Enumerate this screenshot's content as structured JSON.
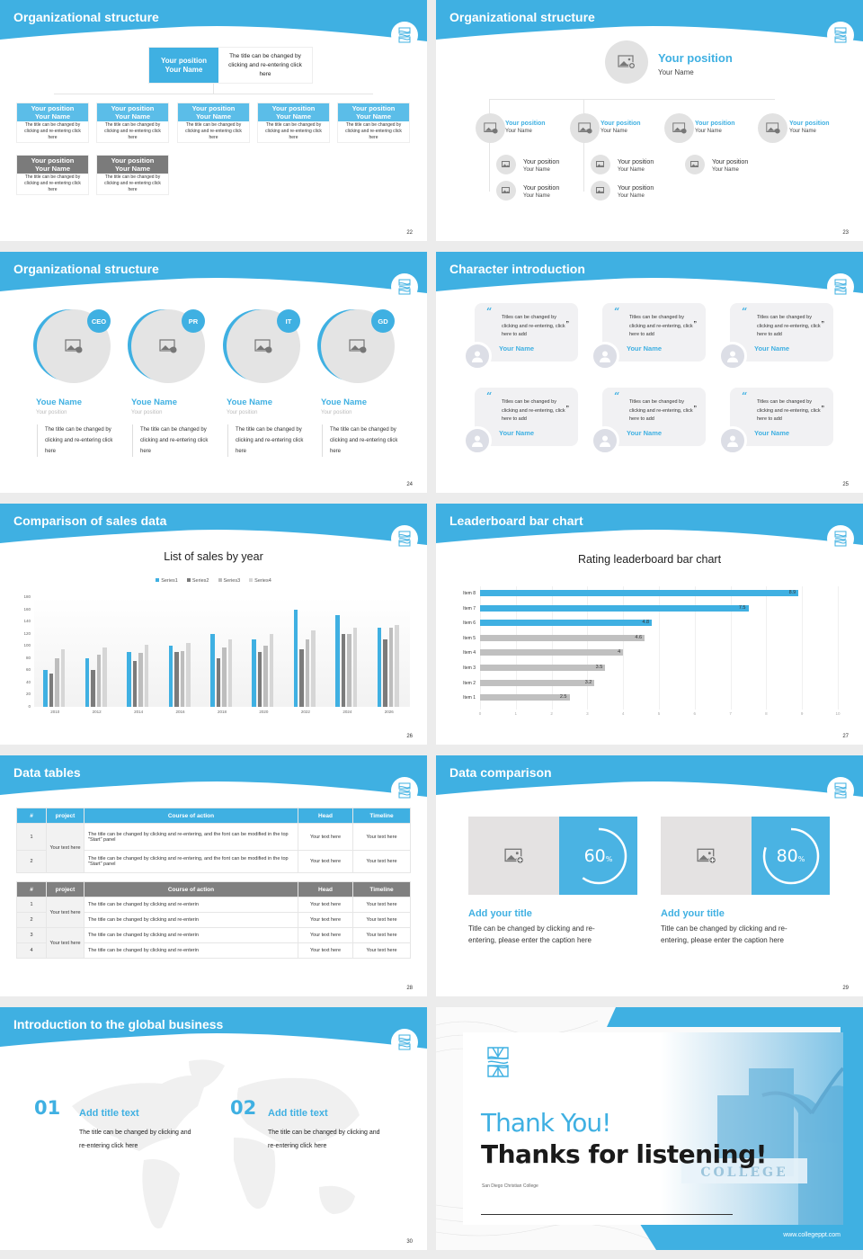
{
  "colors": {
    "accent": "#3fb0e2",
    "gray_dark": "#7b7b7b",
    "gray_mid": "#b0b0b0",
    "gray_light": "#d4d4d4",
    "page_bg": "#ececec"
  },
  "slides": {
    "s22": {
      "title": "Organizational structure",
      "page": "22",
      "top": {
        "position": "Your position",
        "name": "Your Name",
        "desc": "The title can be changed by clicking and re-entering click here"
      },
      "row1": [
        {
          "position": "Your position",
          "name": "Your Name",
          "desc": "The title can be changed by clicking and re-entering click here"
        },
        {
          "position": "Your position",
          "name": "Your Name",
          "desc": "The title can be changed by clicking and re-entering click here"
        },
        {
          "position": "Your position",
          "name": "Your Name",
          "desc": "The title can be changed by clicking and re-entering click here"
        },
        {
          "position": "Your position",
          "name": "Your Name",
          "desc": "The title can be changed by clicking and re-entering click here"
        },
        {
          "position": "Your position",
          "name": "Your Name",
          "desc": "The title can be changed by clicking and re-entering click here"
        }
      ],
      "row2": [
        {
          "position": "Your position",
          "name": "Your Name",
          "desc": "The title can be changed by clicking and re-entering click here"
        },
        {
          "position": "Your position",
          "name": "Your Name",
          "desc": "The title can be changed by clicking and re-entering click here"
        }
      ]
    },
    "s23": {
      "title": "Organizational structure",
      "page": "23",
      "top": {
        "position": "Your position",
        "name": "Your Name"
      },
      "level2": [
        {
          "position": "Your position",
          "name": "Your Name"
        },
        {
          "position": "Your position",
          "name": "Your Name"
        },
        {
          "position": "Your position",
          "name": "Your Name"
        },
        {
          "position": "Your position",
          "name": "Your Name"
        }
      ],
      "level3": [
        {
          "position": "Your position",
          "name": "Your Name"
        },
        {
          "position": "Your position",
          "name": "Your Name"
        },
        {
          "position": "Your position",
          "name": "Your Name"
        },
        {
          "position": "Your position",
          "name": "Your Name"
        },
        {
          "position": "Your position",
          "name": "Your Name"
        }
      ]
    },
    "s24": {
      "title": "Organizational structure",
      "page": "24",
      "people": [
        {
          "tag": "CEO",
          "name": "Youe Name",
          "position": "Your position",
          "desc": "The title can be changed by clicking and re-entering click here"
        },
        {
          "tag": "PR",
          "name": "Youe Name",
          "position": "Your position",
          "desc": "The title can be changed by clicking and re-entering click here"
        },
        {
          "tag": "IT",
          "name": "Youe Name",
          "position": "Your position",
          "desc": "The title can be changed by clicking and re-entering click here"
        },
        {
          "tag": "GD",
          "name": "Youe Name",
          "position": "Your position",
          "desc": "The title can be changed by clicking and re-entering click here"
        }
      ]
    },
    "s25": {
      "title": "Character introduction",
      "page": "25",
      "cards": [
        {
          "text": "Titles can be changed by clicking and re-entering, click here to add",
          "name": "Your Name"
        },
        {
          "text": "Titles can be changed by clicking and re-entering, click here to add",
          "name": "Your Name"
        },
        {
          "text": "Titles can be changed by clicking and re-entering, click here to add",
          "name": "Your Name"
        },
        {
          "text": "Titles can be changed by clicking and re-entering, click here to add",
          "name": "Your Name"
        },
        {
          "text": "Titles can be changed by clicking and re-entering, click here to add",
          "name": "Your Name"
        },
        {
          "text": "Titles can be changed by clicking and re-entering, click here to add",
          "name": "Your Name"
        }
      ],
      "quote_open": "“",
      "quote_close": "”"
    },
    "s26": {
      "title": "Comparison of sales data",
      "page": "26"
    },
    "s27": {
      "title": "Leaderboard bar chart",
      "page": "27"
    },
    "s28": {
      "title": "Data tables",
      "page": "28",
      "table1": {
        "headers": [
          "#",
          "project",
          "Course of action",
          "Head",
          "Timeline"
        ],
        "project": "Your text here",
        "rows": [
          {
            "num": "1",
            "action": "The title can be changed by clicking and re-entering, and the font can be modified in the top \"Start\" panel",
            "head": "Your text here",
            "timeline": "Your text here"
          },
          {
            "num": "2",
            "action": "The title can be changed by clicking and re-entering, and the font can be modified in the top \"Start\" panel",
            "head": "Your text here",
            "timeline": "Your text here"
          }
        ]
      },
      "table2": {
        "headers": [
          "#",
          "project",
          "Course of action",
          "Head",
          "Timeline"
        ],
        "projects": [
          "Your text here",
          "Your text here"
        ],
        "rows": [
          {
            "num": "1",
            "action": "The title can be changed by clicking and re-enterin",
            "head": "Your text here",
            "timeline": "Your text here"
          },
          {
            "num": "2",
            "action": "The title can be changed by clicking and re-enterin",
            "head": "Your text here",
            "timeline": "Your text here"
          },
          {
            "num": "3",
            "action": "The title can be changed by clicking and re-enterin",
            "head": "Your text here",
            "timeline": "Your text here"
          },
          {
            "num": "4",
            "action": "The title can be changed by clicking and re-enterin",
            "head": "Your text here",
            "timeline": "Your text here"
          }
        ]
      }
    },
    "s29": {
      "title": "Data comparison",
      "page": "29",
      "items": [
        {
          "value": "60",
          "unit": "%",
          "percent": 60,
          "title": "Add your title",
          "desc": "Title can be changed by clicking and re-entering, please enter the caption here"
        },
        {
          "value": "80",
          "unit": "%",
          "percent": 80,
          "title": "Add your title",
          "desc": "Title can be changed by clicking and re-entering, please enter the caption here"
        }
      ]
    },
    "s30": {
      "title": "Introduction to the global business",
      "page": "30",
      "items": [
        {
          "num": "01",
          "title": "Add title text",
          "desc": "The title can be changed by clicking and re-entering click here"
        },
        {
          "num": "02",
          "title": "Add title text",
          "desc": "The title can be changed by clicking and re-entering click here"
        }
      ]
    },
    "s31": {
      "thank_you": "Thank You!",
      "thanks": "Thanks for listening!",
      "college": "San Diego Christian College",
      "url": "www.collegeppt.com",
      "sign_text": "COLLEGE"
    }
  },
  "chart_data": [
    {
      "type": "bar",
      "title": "List of sales by year",
      "categories": [
        "2010",
        "2012",
        "2014",
        "2016",
        "2018",
        "2020",
        "2022",
        "2024",
        "2026"
      ],
      "series": [
        {
          "name": "Series1",
          "color": "#3fb0e2",
          "values": [
            60,
            80,
            90,
            100,
            120,
            110,
            160,
            150,
            130
          ]
        },
        {
          "name": "Series2",
          "color": "#7b7b7b",
          "values": [
            55,
            60,
            75,
            90,
            80,
            90,
            95,
            120,
            110
          ]
        },
        {
          "name": "Series3",
          "color": "#bdbdbd",
          "values": [
            80,
            85,
            88,
            92,
            98,
            100,
            110,
            120,
            130
          ]
        },
        {
          "name": "Series4",
          "color": "#d6d6d6",
          "values": [
            95,
            98,
            102,
            105,
            110,
            120,
            125,
            130,
            135
          ]
        }
      ],
      "yticks": [
        0,
        20,
        40,
        60,
        80,
        100,
        120,
        140,
        160,
        180
      ],
      "ylim": [
        0,
        180
      ],
      "legend_position": "top",
      "grid": false,
      "xlabel": "",
      "ylabel": ""
    },
    {
      "type": "bar",
      "orientation": "horizontal",
      "title": "Rating leaderboard bar chart",
      "categories": [
        "Item 8",
        "Item 7",
        "Item 6",
        "Item 5",
        "Item 4",
        "Item 3",
        "Item 2",
        "Item 1"
      ],
      "values": [
        8.9,
        7.5,
        4.8,
        4.6,
        4,
        3.5,
        3.2,
        2.5
      ],
      "labels": [
        "8.9",
        "7.5",
        "4.8",
        "4.6",
        "4",
        "3.5",
        "3.2",
        "2.5"
      ],
      "highlighted": [
        true,
        true,
        true,
        false,
        false,
        false,
        false,
        false
      ],
      "xticks": [
        0,
        1,
        2,
        3,
        4,
        5,
        6,
        7,
        8,
        9,
        10
      ],
      "xlim": [
        0,
        10
      ],
      "grid": true,
      "xlabel": "",
      "ylabel": ""
    }
  ]
}
